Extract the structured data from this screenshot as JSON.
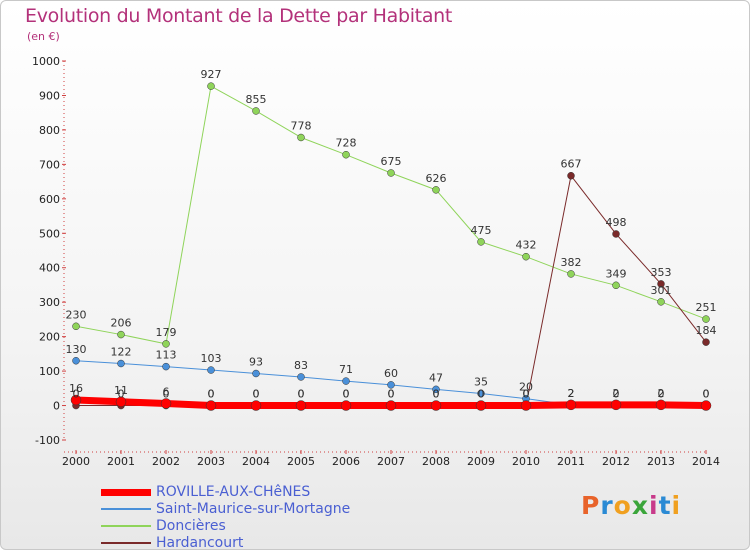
{
  "title": "Evolution du Montant de la Dette par Habitant",
  "unit": "(en €)",
  "logo": {
    "text": "Proxiti",
    "colors": [
      "#e8632a",
      "#2a8ad4",
      "#f0a020",
      "#3aa53a",
      "#c83a8a",
      "#2a8ad4",
      "#f0a020"
    ]
  },
  "chart_data": {
    "type": "line",
    "title": "Evolution du Montant de la Dette par Habitant",
    "ylabel": "(en €)",
    "xlabel": "",
    "ylim": [
      -100,
      1000
    ],
    "yticks": [
      -100,
      0,
      100,
      200,
      300,
      400,
      500,
      600,
      700,
      800,
      900,
      1000
    ],
    "x": [
      "2000",
      "2001",
      "2002",
      "2003",
      "2004",
      "2005",
      "2006",
      "2007",
      "2008",
      "2009",
      "2010",
      "2011",
      "2012",
      "2013",
      "2014"
    ],
    "grid": false,
    "legend_position": "bottom-left",
    "series": [
      {
        "name": "ROVILLE-AUX-CHêNES",
        "color": "#ff0000",
        "width": 7,
        "values": [
          16,
          11,
          6,
          0,
          0,
          0,
          0,
          0,
          0,
          0,
          0,
          2,
          2,
          2,
          0
        ]
      },
      {
        "name": "Saint-Maurice-sur-Mortagne",
        "color": "#4a90d9",
        "width": 1,
        "values": [
          130,
          122,
          113,
          103,
          93,
          83,
          71,
          60,
          47,
          35,
          20,
          2,
          0,
          0,
          0
        ]
      },
      {
        "name": "Doncières",
        "color": "#8fd45a",
        "width": 1,
        "values": [
          230,
          206,
          179,
          927,
          855,
          778,
          728,
          675,
          626,
          475,
          432,
          382,
          349,
          301,
          251
        ]
      },
      {
        "name": "Hardancourt",
        "color": "#7a2a2a",
        "width": 1,
        "values": [
          0,
          0,
          0,
          0,
          0,
          0,
          0,
          0,
          0,
          0,
          0,
          667,
          498,
          353,
          184
        ]
      }
    ]
  }
}
